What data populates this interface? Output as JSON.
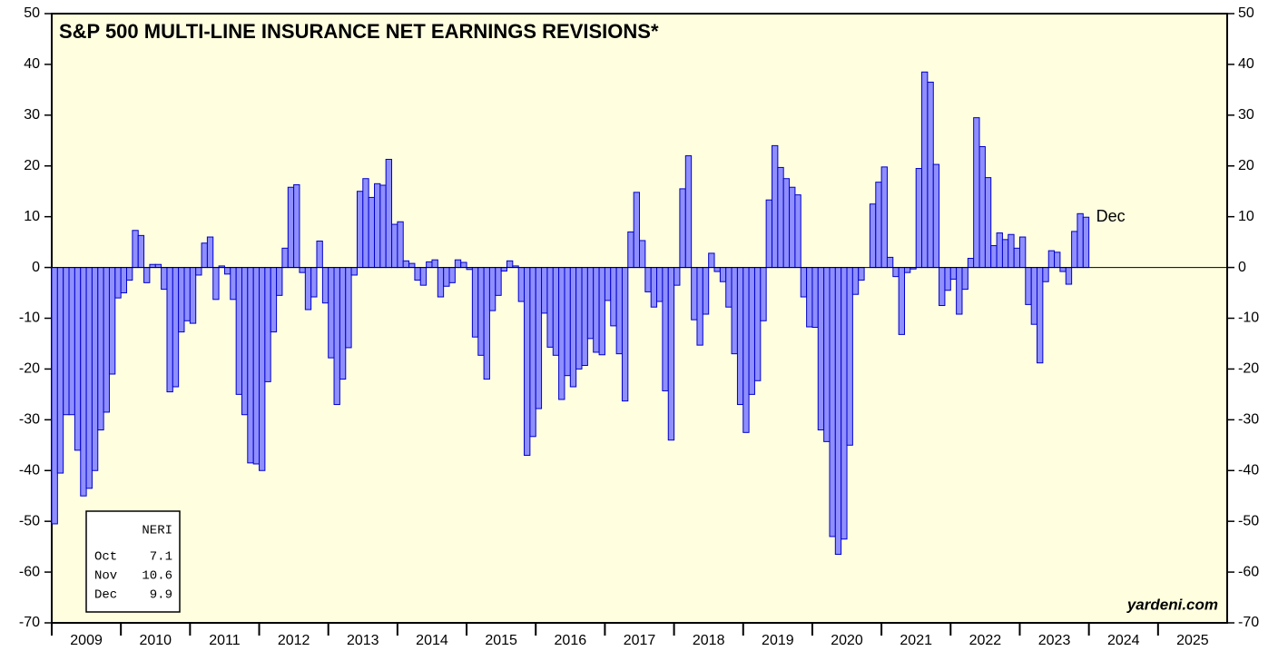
{
  "chart_data": {
    "type": "bar",
    "title": "S&P 500 MULTI-LINE INSURANCE NET EARNINGS REVISIONS*",
    "x": [
      2009,
      2009.083,
      2009.167,
      2009.25,
      2009.333,
      2009.417,
      2009.5,
      2009.583,
      2009.667,
      2009.75,
      2009.833,
      2009.917,
      2010,
      2010.083,
      2010.167,
      2010.25,
      2010.333,
      2010.417,
      2010.5,
      2010.583,
      2010.667,
      2010.75,
      2010.833,
      2010.917,
      2011,
      2011.083,
      2011.167,
      2011.25,
      2011.333,
      2011.417,
      2011.5,
      2011.583,
      2011.667,
      2011.75,
      2011.833,
      2011.917,
      2012,
      2012.083,
      2012.167,
      2012.25,
      2012.333,
      2012.417,
      2012.5,
      2012.583,
      2012.667,
      2012.75,
      2012.833,
      2012.917,
      2013,
      2013.083,
      2013.167,
      2013.25,
      2013.333,
      2013.417,
      2013.5,
      2013.583,
      2013.667,
      2013.75,
      2013.833,
      2013.917,
      2014,
      2014.083,
      2014.167,
      2014.25,
      2014.333,
      2014.417,
      2014.5,
      2014.583,
      2014.667,
      2014.75,
      2014.833,
      2014.917,
      2015,
      2015.083,
      2015.167,
      2015.25,
      2015.333,
      2015.417,
      2015.5,
      2015.583,
      2015.667,
      2015.75,
      2015.833,
      2015.917,
      2016,
      2016.083,
      2016.167,
      2016.25,
      2016.333,
      2016.417,
      2016.5,
      2016.583,
      2016.667,
      2016.75,
      2016.833,
      2016.917,
      2017,
      2017.083,
      2017.167,
      2017.25,
      2017.333,
      2017.417,
      2017.5,
      2017.583,
      2017.667,
      2017.75,
      2017.833,
      2017.917,
      2018,
      2018.083,
      2018.167,
      2018.25,
      2018.333,
      2018.417,
      2018.5,
      2018.583,
      2018.667,
      2018.75,
      2018.833,
      2018.917,
      2019,
      2019.083,
      2019.167,
      2019.25,
      2019.333,
      2019.417,
      2019.5,
      2019.583,
      2019.667,
      2019.75,
      2019.833,
      2019.917,
      2020,
      2020.083,
      2020.167,
      2020.25,
      2020.333,
      2020.417,
      2020.5,
      2020.583,
      2020.667,
      2020.75,
      2020.833,
      2020.917,
      2021,
      2021.083,
      2021.167,
      2021.25,
      2021.333,
      2021.417,
      2021.5,
      2021.583,
      2021.667,
      2021.75,
      2021.833,
      2021.917,
      2022,
      2022.083,
      2022.167,
      2022.25,
      2022.333,
      2022.417,
      2022.5,
      2022.583,
      2022.667,
      2022.75,
      2022.833,
      2022.917,
      2023,
      2023.083,
      2023.167,
      2023.25,
      2023.333,
      2023.417,
      2023.5,
      2023.583,
      2023.667,
      2023.75,
      2023.833,
      2023.917
    ],
    "values": [
      -50.5,
      -40.5,
      -29,
      -29,
      -36,
      -45,
      -43.5,
      -40,
      -32,
      -28.5,
      -21,
      -6,
      -5,
      -2.5,
      7.3,
      6.3,
      -3,
      0.6,
      0.6,
      -4.3,
      -24.5,
      -23.5,
      -12.7,
      -10.5,
      -11,
      -1.5,
      4.8,
      6,
      -6.3,
      0.3,
      -1.3,
      -6.3,
      -25,
      -29,
      -38.5,
      -38.7,
      -40,
      -22.5,
      -12.7,
      -5.5,
      3.8,
      15.8,
      16.3,
      -1,
      -8.3,
      -5.8,
      5.2,
      -7,
      -17.8,
      -27,
      -22,
      -15.8,
      -1.5,
      15,
      17.5,
      13.8,
      16.5,
      16.2,
      21.3,
      8.5,
      9,
      1.3,
      0.8,
      -2.5,
      -3.5,
      1.1,
      1.5,
      -5.8,
      -3.7,
      -3,
      1.5,
      1,
      -0.4,
      -13.7,
      -17.3,
      -22,
      -8.5,
      -5.5,
      -0.7,
      1.3,
      0.3,
      -6.7,
      -37,
      -33.3,
      -27.8,
      -9,
      -15.7,
      -17.3,
      -26,
      -21.3,
      -23.5,
      -20,
      -19.3,
      -14,
      -16.7,
      -17.2,
      -6.5,
      -11.5,
      -17,
      -26.3,
      7,
      14.8,
      5.3,
      -4.8,
      -7.8,
      -6.7,
      -24.3,
      -34,
      -3.5,
      15.5,
      22,
      -10.3,
      -15.3,
      -9.2,
      2.8,
      -0.8,
      -2.8,
      -7.8,
      -17,
      -27,
      -32.5,
      -25,
      -22.3,
      -10.5,
      13.3,
      24,
      19.7,
      17.5,
      15.8,
      14.3,
      -5.8,
      -11.7,
      -11.8,
      -32,
      -34.3,
      -53,
      -56.5,
      -53.5,
      -35,
      -5.3,
      -2.5,
      0,
      12.5,
      16.8,
      19.8,
      2,
      -1.8,
      -13.2,
      -1,
      -0.3,
      19.5,
      38.5,
      36.5,
      20.3,
      -7.5,
      -4.5,
      -2.3,
      -9.2,
      -4.3,
      1.8,
      29.5,
      23.8,
      17.7,
      4.3,
      6.8,
      5.5,
      6.5,
      3.8,
      6,
      -7.3,
      -11.2,
      -18.8,
      -2.8,
      3.3,
      3,
      -0.8,
      -3.3,
      7.1,
      10.6,
      9.9
    ],
    "color": "#8f8fff",
    "xlim": [
      2009,
      2026
    ],
    "xticks": [
      {
        "value": 2009,
        "label": "2009"
      },
      {
        "value": 2010,
        "label": "2010"
      },
      {
        "value": 2011,
        "label": "2011"
      },
      {
        "value": 2012,
        "label": "2012"
      },
      {
        "value": 2013,
        "label": "2013"
      },
      {
        "value": 2014,
        "label": "2014"
      },
      {
        "value": 2015,
        "label": "2015"
      },
      {
        "value": 2016,
        "label": "2016"
      },
      {
        "value": 2017,
        "label": "2017"
      },
      {
        "value": 2018,
        "label": "2018"
      },
      {
        "value": 2019,
        "label": "2019"
      },
      {
        "value": 2020,
        "label": "2020"
      },
      {
        "value": 2021,
        "label": "2021"
      },
      {
        "value": 2022,
        "label": "2022"
      },
      {
        "value": 2023,
        "label": "2023"
      },
      {
        "value": 2024,
        "label": "2024"
      },
      {
        "value": 2025,
        "label": "2025"
      }
    ],
    "ylim": [
      -70,
      50
    ],
    "yticks": [
      -70,
      -60,
      -50,
      -40,
      -30,
      -20,
      -10,
      0,
      10,
      20,
      30,
      40,
      50
    ],
    "last_label": "Dec",
    "source": "yardeni.com",
    "legend_table": {
      "header": "NERI",
      "rows": [
        [
          "Oct",
          "7.1"
        ],
        [
          "Nov",
          "10.6"
        ],
        [
          "Dec",
          "9.9"
        ]
      ]
    }
  }
}
